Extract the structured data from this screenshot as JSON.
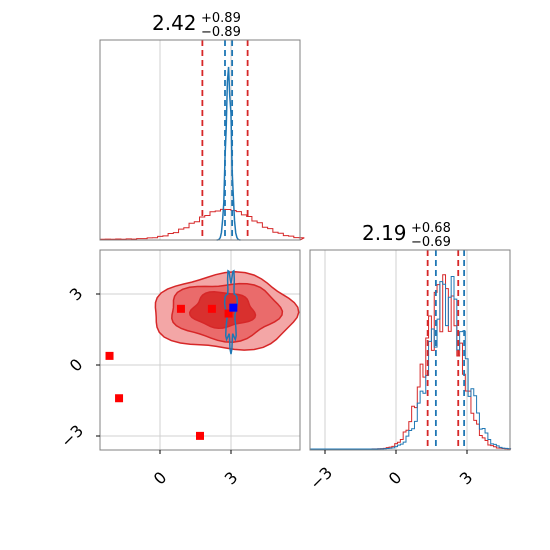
{
  "chart_data": {
    "type": "corner",
    "parameters": [
      {
        "title_value": "2.42",
        "title_plus": "+0.89",
        "title_minus": "−0.89"
      },
      {
        "title_value": "2.19",
        "title_plus": "+0.68",
        "title_minus": "−0.69"
      }
    ],
    "colors": {
      "red": "#d62728",
      "blue": "#1f77b4",
      "marker_red": "#ff0000",
      "marker_blue": "#0000ff",
      "fill_light": "#f3a6a6",
      "fill_mid": "#ea6b6b",
      "fill_dark": "#d9302e",
      "scatter": "#f2b8d0"
    },
    "grid": true,
    "axes": {
      "param0_range": [
        -2.7,
        5.7
      ],
      "param1_range": [
        -3.5,
        5.0
      ],
      "ticks": [
        -3,
        0,
        3
      ],
      "tick_labels": [
        "−3",
        "0",
        "3"
      ]
    },
    "marginal_0": {
      "red_quantile_lines": [
        1.6,
        3.5
      ],
      "blue_quantile_lines": [
        2.55,
        2.85
      ],
      "blue_center": 2.7
    },
    "marginal_1": {
      "red_quantile_lines": [
        1.5,
        2.8
      ],
      "blue_quantile_lines": [
        1.85,
        3.05
      ]
    },
    "joint": {
      "red_square_markers": [
        {
          "x": -2.3,
          "y": 0.5
        },
        {
          "x": -1.9,
          "y": -1.3
        },
        {
          "x": 1.5,
          "y": -2.9
        },
        {
          "x": 0.7,
          "y": 2.5
        },
        {
          "x": 2.0,
          "y": 2.5
        },
        {
          "x": 2.7,
          "y": 2.3
        }
      ],
      "blue_square_marker": {
        "x": 2.9,
        "y": 2.55
      },
      "red_contour_levels": 3,
      "red_contour_center": {
        "x": 2.55,
        "y": 2.35
      }
    },
    "ticks_bottom_left": [
      "0",
      "3"
    ],
    "ticks_left": [
      "3",
      "0",
      "−3"
    ],
    "ticks_bottom_right": [
      "−3",
      "0",
      "3"
    ]
  }
}
